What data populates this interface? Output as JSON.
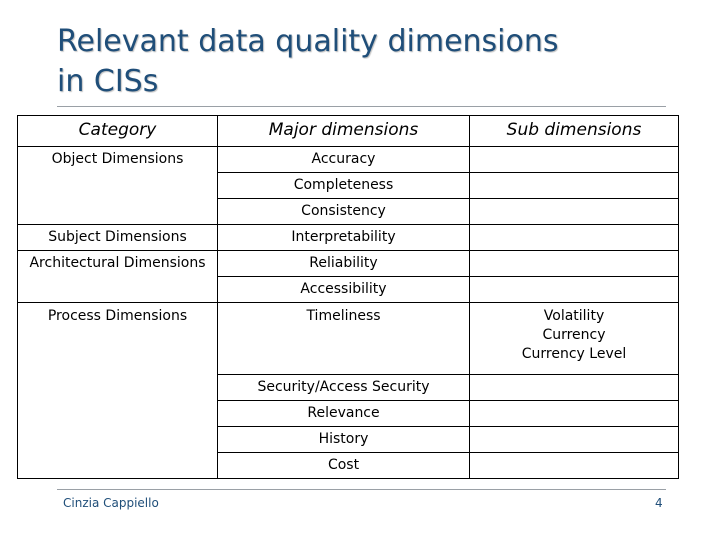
{
  "slide": {
    "title_line1": "Relevant data quality dimensions",
    "title_line2": "in CISs",
    "footer_author": "Cinzia Cappiello",
    "page_number": "4"
  },
  "table": {
    "headers": [
      "Category",
      "Major dimensions",
      "Sub dimensions"
    ],
    "rows": [
      {
        "category": "Object Dimensions",
        "major": "Accuracy",
        "sub": []
      },
      {
        "category": "",
        "major": "Completeness",
        "sub": []
      },
      {
        "category": "",
        "major": "Consistency",
        "sub": []
      },
      {
        "category": "Subject Dimensions",
        "major": "Interpretability",
        "sub": []
      },
      {
        "category": "Architectural Dimensions",
        "major": "Reliability",
        "sub": []
      },
      {
        "category": "",
        "major": "Accessibility",
        "sub": []
      },
      {
        "category": "Process Dimensions",
        "major": "Timeliness",
        "sub": [
          "Volatility",
          "Currency",
          "Currency Level"
        ]
      },
      {
        "category": "",
        "major": "Security/Access Security",
        "sub": []
      },
      {
        "category": "",
        "major": "Relevance",
        "sub": []
      },
      {
        "category": "",
        "major": "History",
        "sub": []
      },
      {
        "category": "",
        "major": "Cost",
        "sub": []
      }
    ]
  }
}
